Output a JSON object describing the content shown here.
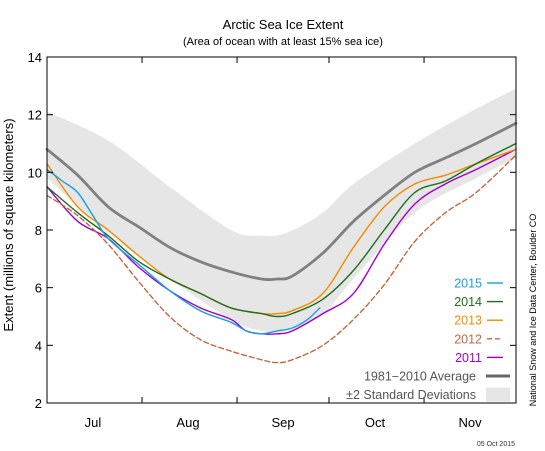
{
  "chart_data": {
    "type": "line",
    "title": "Arctic Sea Ice Extent",
    "subtitle": "(Area of ocean with at least 15% sea ice)",
    "xlabel": "",
    "ylabel": "Extent (millions of square kilometers)",
    "xlim": [
      0,
      153
    ],
    "ylim": [
      2,
      14
    ],
    "yticks": [
      2,
      4,
      6,
      8,
      10,
      12,
      14
    ],
    "xticks": [
      {
        "label": "Jul",
        "x": 15
      },
      {
        "label": "Aug",
        "x": 46
      },
      {
        "label": "Sep",
        "x": 77
      },
      {
        "label": "Oct",
        "x": 107
      },
      {
        "label": "Nov",
        "x": 138
      }
    ],
    "grid": false,
    "legend_position": "bottom-right",
    "credit": "National Snow and Ice Data Center, Boulder CO",
    "date_stamp": "05 Oct 2015",
    "band": {
      "name": "±2 Standard Deviations",
      "color": "#e6e6e6",
      "x": [
        0,
        20,
        40,
        60,
        70,
        78,
        90,
        100,
        120,
        140,
        153
      ],
      "lower": [
        9.8,
        7.9,
        6.3,
        4.9,
        4.5,
        4.5,
        5.1,
        6.3,
        8.6,
        9.8,
        10.5
      ],
      "upper": [
        12.1,
        11.1,
        9.5,
        8.0,
        7.8,
        7.9,
        8.6,
        9.6,
        11.0,
        12.2,
        12.9
      ]
    },
    "series": [
      {
        "name": "1981−2010 Average",
        "color": "#808080",
        "width": 2.8,
        "dash": "",
        "x": [
          0,
          10,
          20,
          30,
          40,
          50,
          60,
          70,
          75,
          80,
          90,
          100,
          110,
          120,
          130,
          140,
          153
        ],
        "y": [
          10.8,
          9.9,
          8.8,
          8.1,
          7.4,
          6.9,
          6.55,
          6.3,
          6.3,
          6.4,
          7.2,
          8.3,
          9.2,
          10.0,
          10.5,
          11.0,
          11.7
        ]
      },
      {
        "name": "2011",
        "color": "#a000c8",
        "width": 1.4,
        "dash": "",
        "x": [
          0,
          10,
          20,
          30,
          40,
          50,
          60,
          65,
          70,
          75,
          80,
          90,
          100,
          110,
          120,
          130,
          140,
          153
        ],
        "y": [
          9.5,
          8.3,
          7.7,
          6.7,
          5.9,
          5.3,
          4.9,
          4.5,
          4.4,
          4.4,
          4.5,
          5.1,
          5.8,
          7.5,
          8.9,
          9.6,
          10.1,
          10.8
        ]
      },
      {
        "name": "2012",
        "color": "#c8643c",
        "width": 1.4,
        "dash": "5,3",
        "x": [
          0,
          10,
          20,
          30,
          40,
          50,
          60,
          70,
          75,
          80,
          90,
          100,
          110,
          120,
          130,
          140,
          153
        ],
        "y": [
          9.2,
          8.5,
          7.5,
          6.2,
          5.0,
          4.2,
          3.8,
          3.5,
          3.4,
          3.5,
          4.0,
          4.9,
          6.1,
          7.6,
          8.6,
          9.3,
          10.6
        ]
      },
      {
        "name": "2013",
        "color": "#f08c00",
        "width": 1.4,
        "dash": "",
        "x": [
          0,
          10,
          20,
          30,
          40,
          50,
          60,
          70,
          75,
          80,
          90,
          100,
          110,
          120,
          130,
          140,
          153
        ],
        "y": [
          10.3,
          8.8,
          8.0,
          7.1,
          6.3,
          5.8,
          5.3,
          5.1,
          5.1,
          5.2,
          5.8,
          7.4,
          8.8,
          9.6,
          9.9,
          10.3,
          10.8
        ]
      },
      {
        "name": "2014",
        "color": "#1e6e1e",
        "width": 1.4,
        "dash": "",
        "x": [
          0,
          10,
          20,
          30,
          40,
          50,
          60,
          70,
          75,
          80,
          90,
          100,
          110,
          120,
          130,
          140,
          153
        ],
        "y": [
          9.5,
          8.6,
          7.8,
          6.9,
          6.3,
          5.8,
          5.3,
          5.1,
          5.0,
          5.1,
          5.6,
          6.6,
          8.0,
          9.3,
          9.7,
          10.3,
          11.0
        ]
      },
      {
        "name": "2015",
        "color": "#14a0e6",
        "width": 1.4,
        "dash": "",
        "x": [
          0,
          5,
          10,
          15,
          20,
          30,
          40,
          50,
          60,
          65,
          70,
          75,
          80,
          85,
          89
        ],
        "y": [
          10.1,
          9.7,
          9.3,
          8.5,
          7.7,
          6.8,
          5.9,
          5.2,
          4.8,
          4.5,
          4.4,
          4.5,
          4.6,
          4.9,
          5.3
        ]
      }
    ],
    "legend": [
      {
        "label": "2015",
        "color": "#14a0e6",
        "style": "line"
      },
      {
        "label": "2014",
        "color": "#1e6e1e",
        "style": "line"
      },
      {
        "label": "2013",
        "color": "#f08c00",
        "style": "line"
      },
      {
        "label": "2012",
        "color": "#c8643c",
        "style": "dash"
      },
      {
        "label": "2011",
        "color": "#a000c8",
        "style": "line"
      },
      {
        "label": "1981−2010 Average",
        "color": "#666666",
        "style": "thick"
      },
      {
        "label": "±2 Standard Deviations",
        "color": "#666666",
        "style": "band"
      }
    ]
  }
}
